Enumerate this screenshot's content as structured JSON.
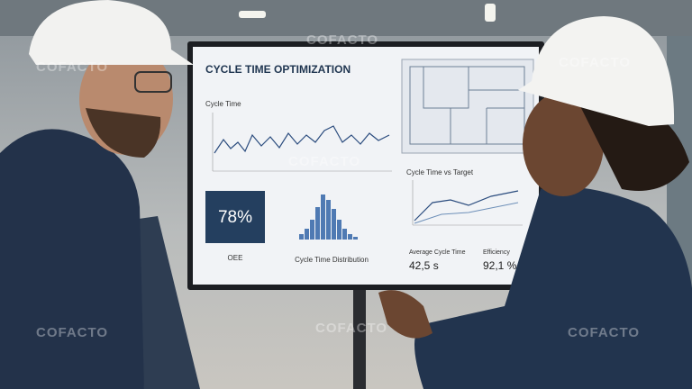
{
  "screen": {
    "title": "CYCLE TIME OPTIMIZATION",
    "line_panel": "Cycle Time",
    "target_panel": "Cycle Time vs Target",
    "kpi": "78%",
    "kpi_label": "OEE",
    "histogram_label": "Cycle Time Distribution",
    "avg_label": "Average Cycle Time",
    "avg_value": "42,5 s",
    "eff_label": "Efficiency",
    "eff_value": "92,1 %"
  },
  "watermark": "COFACTO"
}
